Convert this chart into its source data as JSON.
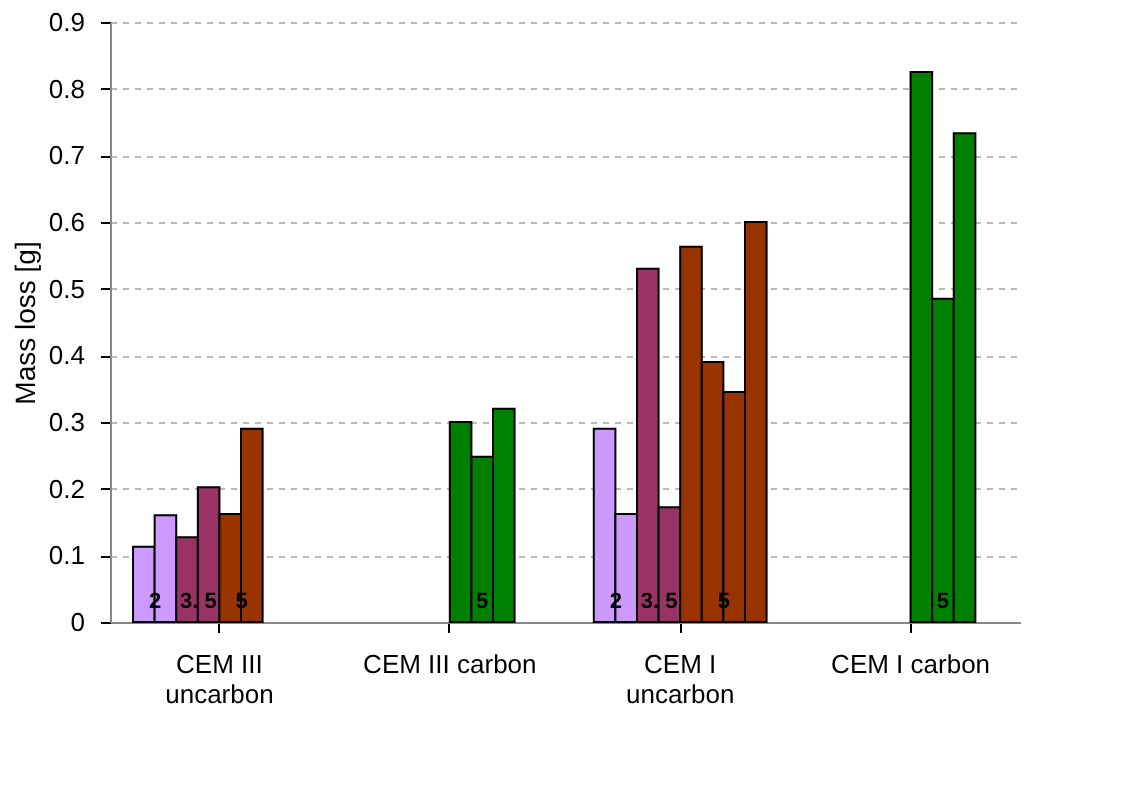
{
  "chart_data": {
    "type": "bar",
    "ylabel": "Mass loss [g]",
    "categories": [
      "CEM III\nuncarbon",
      "CEM III carbon",
      "CEM I\nuncarbon",
      "CEM I carbon"
    ],
    "series": [
      {
        "values": [
          0.113,
          null,
          0.29,
          null
        ],
        "colors": [
          "#cc99ff",
          null,
          "#cc99ff",
          null
        ]
      },
      {
        "values": [
          0.16,
          null,
          0.162,
          null
        ],
        "colors": [
          "#cc99ff",
          null,
          "#cc99ff",
          null
        ]
      },
      {
        "values": [
          0.127,
          null,
          0.53,
          null
        ],
        "colors": [
          "#993366",
          null,
          "#993366",
          null
        ]
      },
      {
        "values": [
          0.202,
          null,
          0.172,
          null
        ],
        "colors": [
          "#993366",
          null,
          "#993366",
          null
        ]
      },
      {
        "values": [
          0.162,
          0.3,
          0.563,
          0.825
        ],
        "colors": [
          "#993300",
          "#008000",
          "#993300",
          "#008000"
        ]
      },
      {
        "values": [
          0.29,
          0.248,
          0.39,
          0.485
        ],
        "colors": [
          "#993300",
          "#008000",
          "#993300",
          "#008000"
        ]
      },
      {
        "values": [
          null,
          0.32,
          0.345,
          0.733
        ],
        "colors": [
          null,
          "#008000",
          "#993300",
          "#008000"
        ]
      },
      {
        "values": [
          null,
          null,
          0.6,
          null
        ],
        "colors": [
          null,
          null,
          "#993300",
          null
        ]
      }
    ],
    "annotations": [
      {
        "text": "2",
        "x": "CEM III\nuncarbon",
        "y": 0.03
      },
      {
        "text": "3. 5",
        "x": "CEM III\nuncarbon",
        "y": 0.03
      },
      {
        "text": "5",
        "x": "CEM III\nuncarbon",
        "y": 0.03
      },
      {
        "text": "5",
        "x": "CEM III carbon",
        "y": 0.03
      },
      {
        "text": "2",
        "x": "CEM I\nuncarbon",
        "y": 0.03
      },
      {
        "text": "3. 5",
        "x": "CEM I\nuncarbon",
        "y": 0.03
      },
      {
        "text": "5",
        "x": "CEM I\nuncarbon",
        "y": 0.03
      },
      {
        "text": "5",
        "x": "CEM I carbon",
        "y": 0.03
      }
    ],
    "ylim": [
      0,
      0.9
    ],
    "yticks": [
      0,
      0.1,
      0.2,
      0.3,
      0.4,
      0.5,
      0.6,
      0.7,
      0.8,
      0.9
    ],
    "grid": "y"
  }
}
